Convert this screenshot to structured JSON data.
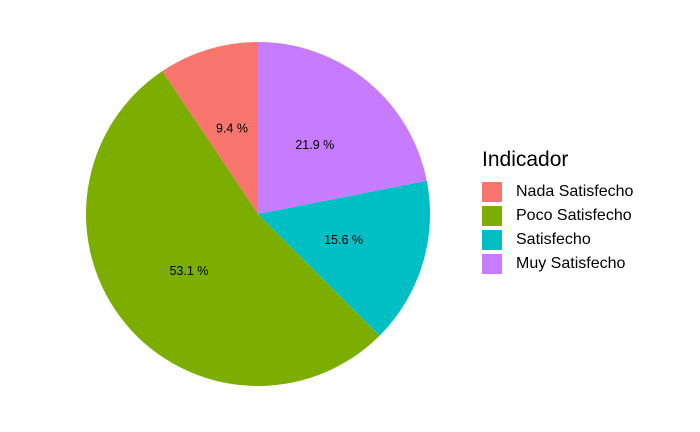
{
  "chart_data": {
    "type": "pie",
    "legend_title": "Indicador",
    "legend_position": "right",
    "categories": [
      "Nada Satisfecho",
      "Poco Satisfecho",
      "Satisfecho",
      "Muy Satisfecho"
    ],
    "values": [
      9.4,
      53.1,
      15.6,
      21.9
    ],
    "labels": [
      "9.4 %",
      "53.1 %",
      "15.6 %",
      "21.9 %"
    ],
    "colors": [
      "#F8766D",
      "#7CAE00",
      "#00BFC4",
      "#C77CFF"
    ],
    "start": "12 o'clock",
    "direction": "counterclockwise"
  }
}
